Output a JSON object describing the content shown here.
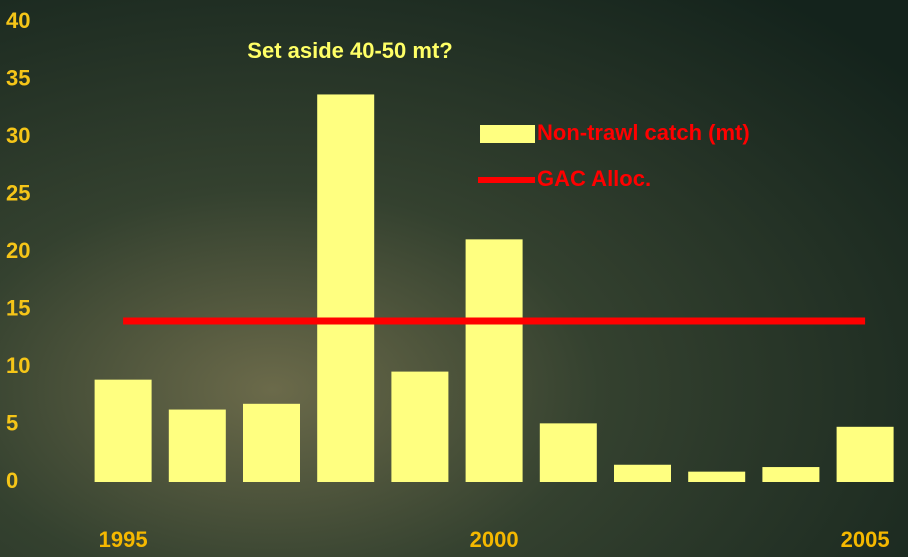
{
  "chart_data": {
    "type": "bar",
    "title": "Set aside 40-50 mt?",
    "categories": [
      "1995",
      null,
      null,
      null,
      null,
      "2000",
      null,
      null,
      null,
      null,
      "2005"
    ],
    "series": [
      {
        "name": "Non-trawl catch (mt)",
        "type": "bar",
        "color": "#ffff80",
        "values": [
          8.9,
          6.3,
          6.8,
          33.7,
          9.6,
          21.1,
          5.1,
          1.5,
          0.9,
          1.3,
          4.8
        ]
      },
      {
        "name": "GAC Alloc.",
        "type": "line",
        "color": "#ff0000",
        "values": [
          14,
          14,
          14,
          14,
          14,
          14,
          14,
          14,
          14,
          14,
          14
        ]
      }
    ],
    "ylim": [
      0,
      40
    ],
    "yticks": [
      0,
      5,
      10,
      15,
      20,
      25,
      30,
      35,
      40
    ],
    "grid": false,
    "legend": "top-right"
  }
}
